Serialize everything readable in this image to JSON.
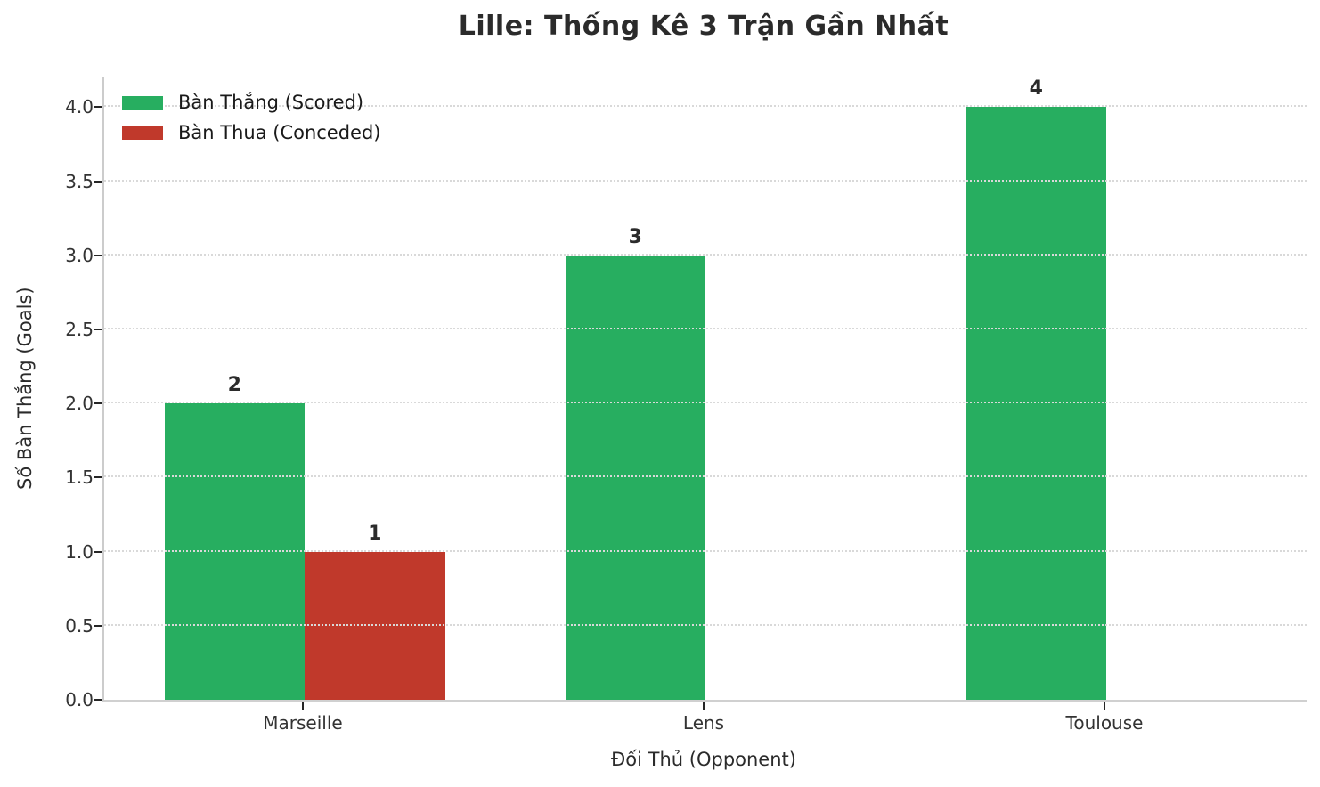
{
  "chart_data": {
    "type": "bar",
    "title": "Lille: Thống Kê 3 Trận Gần Nhất",
    "xlabel": "Đối Thủ (Opponent)",
    "ylabel": "Số Bàn Thắng (Goals)",
    "categories": [
      "Marseille",
      "Lens",
      "Toulouse"
    ],
    "series": [
      {
        "name": "Bàn Thắng (Scored)",
        "color": "#27ae60",
        "values": [
          2,
          3,
          4
        ]
      },
      {
        "name": "Bàn Thua (Conceded)",
        "color": "#c0392b",
        "values": [
          1,
          0,
          0
        ]
      }
    ],
    "ylim": [
      0,
      4.2
    ],
    "yticks": [
      "0.0",
      "0.5",
      "1.0",
      "1.5",
      "2.0",
      "2.5",
      "3.0",
      "3.5",
      "4.0"
    ],
    "grid": "horizontal-dotted-over-bars",
    "legend_position": "upper-left",
    "bar_value_labels": true
  },
  "colors": {
    "scored": "#27ae60",
    "conceded": "#c0392b",
    "title_text": "#2b2b2b",
    "tick_text": "#333333",
    "spine": "#cccccc",
    "grid": "#d9d9d9",
    "background": "#ffffff"
  }
}
